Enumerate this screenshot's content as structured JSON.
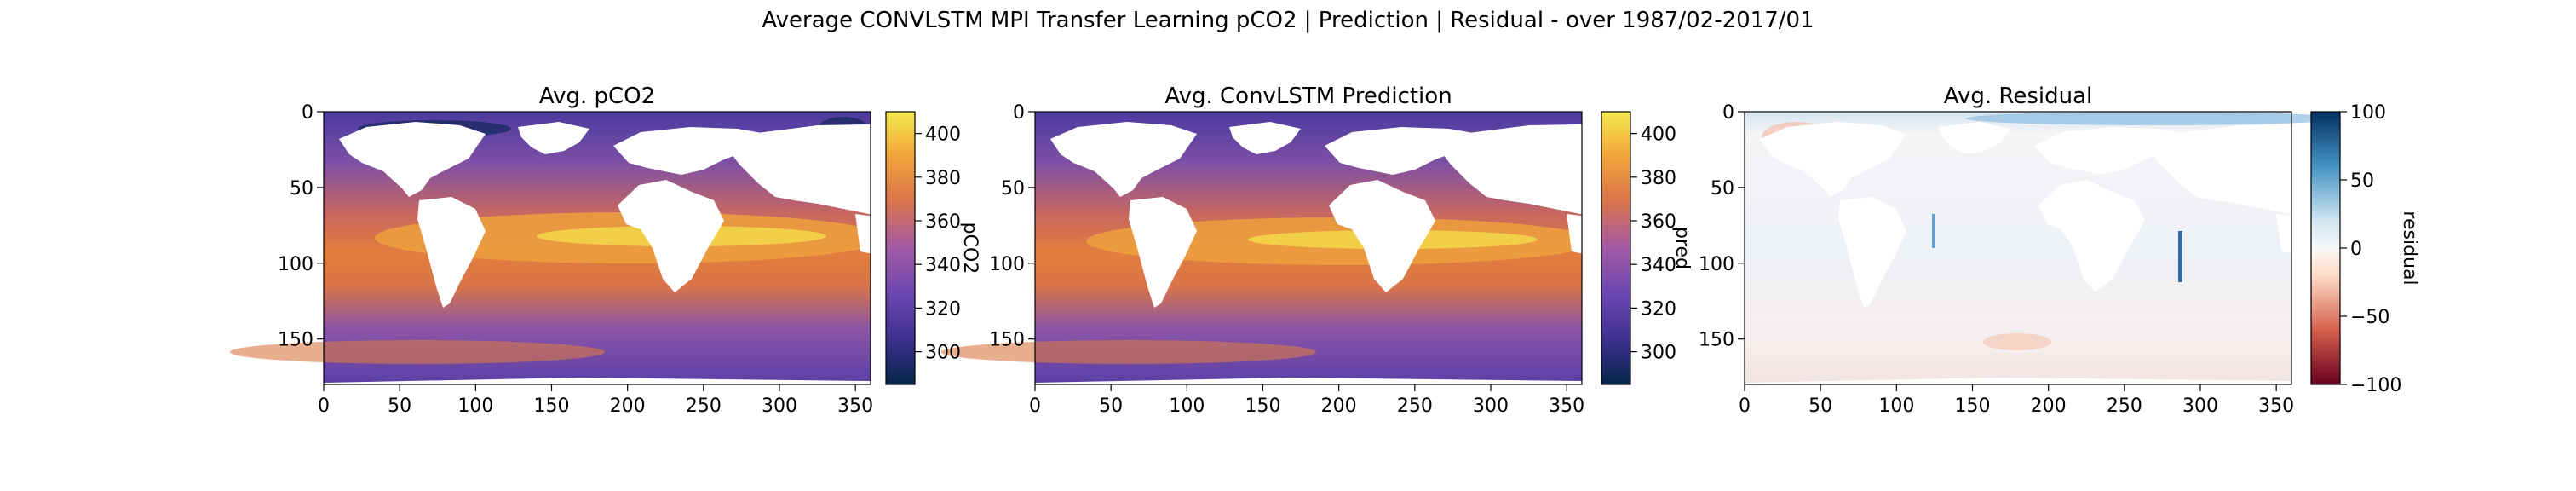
{
  "suptitle": "Average CONVLSTM MPI Transfer Learning pCO2 | Prediction | Residual - over 1987/02-2017/01",
  "chart_data": [
    {
      "type": "heatmap",
      "title": "Avg. pCO2",
      "field": "observed",
      "x_ticks": [
        0,
        50,
        100,
        150,
        200,
        250,
        300,
        350
      ],
      "y_ticks": [
        0,
        50,
        100,
        150
      ],
      "xlim": [
        0,
        360
      ],
      "ylim": [
        180,
        0
      ],
      "colorbar": {
        "label": "pCO2",
        "range": [
          285,
          410
        ],
        "ticks": [
          300,
          320,
          340,
          360,
          380,
          400
        ],
        "colormap": "CMRmap",
        "colors": [
          "#04264b",
          "#3c2f8a",
          "#6a47b0",
          "#a25aa4",
          "#d9744e",
          "#f2a53a",
          "#f3ea4f"
        ]
      }
    },
    {
      "type": "heatmap",
      "title": "Avg. ConvLSTM Prediction",
      "field": "prediction",
      "x_ticks": [
        0,
        50,
        100,
        150,
        200,
        250,
        300,
        350
      ],
      "y_ticks": [
        0,
        50,
        100,
        150
      ],
      "xlim": [
        0,
        360
      ],
      "ylim": [
        180,
        0
      ],
      "colorbar": {
        "label": "pred",
        "range": [
          285,
          410
        ],
        "ticks": [
          300,
          320,
          340,
          360,
          380,
          400
        ],
        "colormap": "CMRmap",
        "colors": [
          "#04264b",
          "#3c2f8a",
          "#6a47b0",
          "#a25aa4",
          "#d9744e",
          "#f2a53a",
          "#f3ea4f"
        ]
      }
    },
    {
      "type": "heatmap",
      "title": "Avg. Residual",
      "field": "residual",
      "x_ticks": [
        0,
        50,
        100,
        150,
        200,
        250,
        300,
        350
      ],
      "y_ticks": [
        0,
        50,
        100,
        150
      ],
      "xlim": [
        0,
        360
      ],
      "ylim": [
        180,
        0
      ],
      "colorbar": {
        "label": "residual",
        "range": [
          -100,
          100
        ],
        "ticks": [
          100,
          50,
          0,
          -50,
          -100
        ],
        "tick_labels": [
          "100",
          "50",
          "0",
          "−50",
          "−100"
        ],
        "colormap": "RdBu",
        "colors": [
          "#67001f",
          "#d6604d",
          "#fddbc7",
          "#f7f7f7",
          "#d1e5f0",
          "#4393c3",
          "#053061"
        ]
      }
    }
  ]
}
